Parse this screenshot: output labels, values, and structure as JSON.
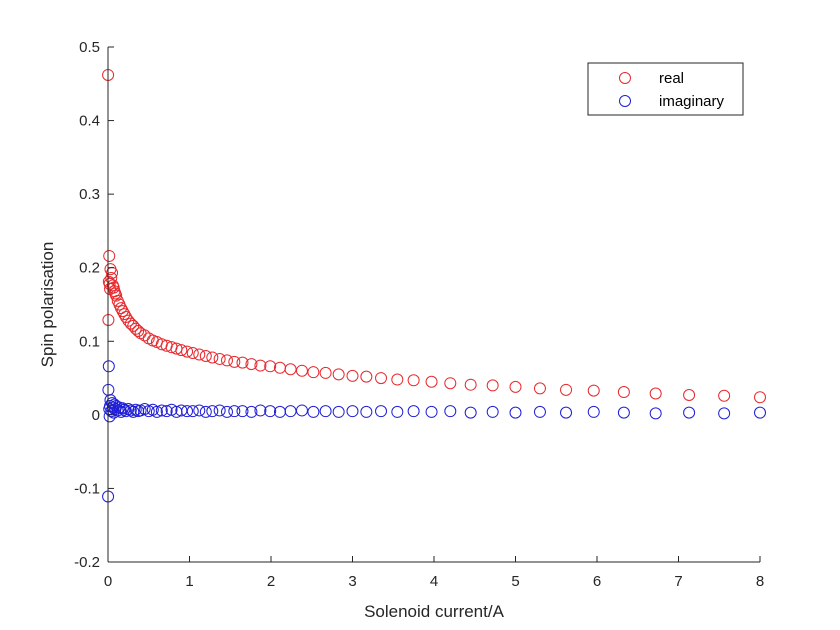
{
  "chart_data": {
    "type": "scatter",
    "title": "",
    "xlabel": "Solenoid current/A",
    "ylabel": "Spin polarisation",
    "xlim": [
      0,
      8
    ],
    "ylim": [
      -0.2,
      0.5
    ],
    "xticks": [
      0,
      1,
      2,
      3,
      4,
      5,
      6,
      7,
      8
    ],
    "yticks": [
      -0.2,
      -0.1,
      0,
      0.1,
      0.2,
      0.3,
      0.4,
      0.5
    ],
    "xtick_labels": [
      "0",
      "1",
      "2",
      "3",
      "4",
      "5",
      "6",
      "7",
      "8"
    ],
    "ytick_labels": [
      "-0.2",
      "-0.1",
      "0",
      "0.1",
      "0.2",
      "0.3",
      "0.4",
      "0.5"
    ],
    "grid": false,
    "legend_position": "top-right",
    "series": [
      {
        "name": "real",
        "color": "#e8282d",
        "marker": "open-circle",
        "x": [
          0.001,
          0.005,
          0.01,
          0.015,
          0.02,
          0.025,
          0.03,
          0.04,
          0.05,
          0.06,
          0.07,
          0.08,
          0.09,
          0.1,
          0.12,
          0.14,
          0.16,
          0.18,
          0.2,
          0.22,
          0.25,
          0.28,
          0.31,
          0.34,
          0.37,
          0.4,
          0.45,
          0.5,
          0.55,
          0.6,
          0.66,
          0.72,
          0.78,
          0.84,
          0.9,
          0.97,
          1.04,
          1.12,
          1.2,
          1.28,
          1.37,
          1.46,
          1.55,
          1.65,
          1.76,
          1.87,
          1.99,
          2.11,
          2.24,
          2.38,
          2.52,
          2.67,
          2.83,
          3.0,
          3.17,
          3.35,
          3.55,
          3.75,
          3.97,
          4.2,
          4.45,
          4.72,
          5.0,
          5.3,
          5.62,
          5.96,
          6.33,
          6.72,
          7.13,
          7.56,
          8.0
        ],
        "y": [
          0.462,
          0.129,
          0.181,
          0.216,
          0.178,
          0.171,
          0.198,
          0.186,
          0.193,
          0.176,
          0.173,
          0.168,
          0.165,
          0.162,
          0.155,
          0.15,
          0.145,
          0.141,
          0.137,
          0.133,
          0.128,
          0.124,
          0.121,
          0.117,
          0.114,
          0.111,
          0.108,
          0.104,
          0.101,
          0.099,
          0.096,
          0.094,
          0.092,
          0.09,
          0.088,
          0.086,
          0.084,
          0.082,
          0.08,
          0.078,
          0.076,
          0.074,
          0.072,
          0.071,
          0.069,
          0.067,
          0.066,
          0.064,
          0.062,
          0.06,
          0.058,
          0.057,
          0.055,
          0.053,
          0.052,
          0.05,
          0.048,
          0.047,
          0.045,
          0.043,
          0.041,
          0.04,
          0.038,
          0.036,
          0.034,
          0.033,
          0.031,
          0.029,
          0.027,
          0.026,
          0.024
        ]
      },
      {
        "name": "imaginary",
        "color": "#1f1fd6",
        "marker": "open-circle",
        "x": [
          0.001,
          0.005,
          0.01,
          0.015,
          0.02,
          0.025,
          0.03,
          0.04,
          0.05,
          0.06,
          0.07,
          0.08,
          0.09,
          0.1,
          0.12,
          0.14,
          0.16,
          0.18,
          0.2,
          0.22,
          0.25,
          0.28,
          0.31,
          0.34,
          0.37,
          0.4,
          0.45,
          0.5,
          0.55,
          0.6,
          0.66,
          0.72,
          0.78,
          0.84,
          0.9,
          0.97,
          1.04,
          1.12,
          1.2,
          1.28,
          1.37,
          1.46,
          1.55,
          1.65,
          1.76,
          1.87,
          1.99,
          2.11,
          2.24,
          2.38,
          2.52,
          2.67,
          2.83,
          3.0,
          3.17,
          3.35,
          3.55,
          3.75,
          3.97,
          4.2,
          4.45,
          4.72,
          5.0,
          5.3,
          5.62,
          5.96,
          6.33,
          6.72,
          7.13,
          7.56,
          8.0
        ],
        "y": [
          -0.111,
          0.034,
          0.066,
          0.008,
          -0.002,
          0.012,
          0.02,
          0.005,
          0.016,
          0.01,
          0.003,
          0.014,
          0.008,
          0.012,
          0.006,
          0.01,
          0.004,
          0.009,
          0.007,
          0.005,
          0.008,
          0.006,
          0.004,
          0.007,
          0.005,
          0.006,
          0.008,
          0.005,
          0.007,
          0.004,
          0.006,
          0.005,
          0.007,
          0.004,
          0.006,
          0.005,
          0.005,
          0.006,
          0.004,
          0.005,
          0.006,
          0.004,
          0.005,
          0.005,
          0.004,
          0.006,
          0.005,
          0.004,
          0.005,
          0.006,
          0.004,
          0.005,
          0.004,
          0.005,
          0.004,
          0.005,
          0.004,
          0.005,
          0.004,
          0.005,
          0.003,
          0.004,
          0.003,
          0.004,
          0.003,
          0.004,
          0.003,
          0.002,
          0.003,
          0.002,
          0.003
        ]
      }
    ]
  }
}
